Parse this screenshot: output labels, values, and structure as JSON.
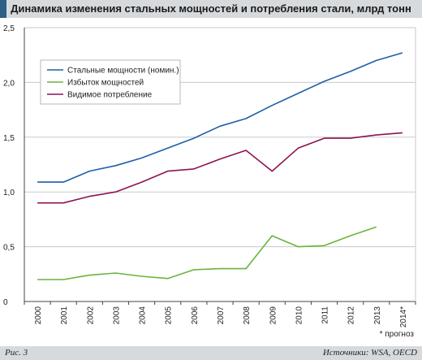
{
  "header": {
    "title": "Динамика изменения стальных мощностей и потребления стали, млрд тонн"
  },
  "footer": {
    "figure_label": "Рис. 3",
    "sources": "Источники: WSA, OECD"
  },
  "colors": {
    "title_bar": "#d7dadd",
    "title_accent": "#2e5f86",
    "grid": "#c8cacc"
  },
  "chart_data": {
    "type": "line",
    "title": "Динамика изменения стальных мощностей и потребления стали, млрд тонн",
    "xlabel": "",
    "ylabel": "",
    "categories": [
      "2000",
      "2001",
      "2002",
      "2003",
      "2004",
      "2005",
      "2006",
      "2007",
      "2008",
      "2009",
      "2010",
      "2011",
      "2012",
      "2013",
      "2014*"
    ],
    "yticks": [
      "0",
      "0,5",
      "1,0",
      "1,5",
      "2,0",
      "2,5"
    ],
    "ylim": [
      0,
      2.5
    ],
    "grid": true,
    "legend_position": "top-left",
    "note": "* прогноз",
    "series": [
      {
        "name": "Стальные мощности (номин.)",
        "color": "#1f5fa6",
        "values": [
          1.09,
          1.09,
          1.19,
          1.24,
          1.31,
          1.4,
          1.49,
          1.6,
          1.67,
          1.79,
          1.9,
          2.01,
          2.1,
          2.2,
          2.27
        ]
      },
      {
        "name": "Избыток мощностей",
        "color": "#6ab43c",
        "values": [
          0.2,
          0.2,
          0.24,
          0.26,
          0.23,
          0.21,
          0.29,
          0.3,
          0.3,
          0.6,
          0.5,
          0.51,
          0.6,
          0.68,
          null
        ]
      },
      {
        "name": "Видимое потребление",
        "color": "#8e1353",
        "values": [
          0.9,
          0.9,
          0.96,
          1.0,
          1.09,
          1.19,
          1.21,
          1.3,
          1.38,
          1.19,
          1.4,
          1.49,
          1.49,
          1.52,
          1.54
        ]
      }
    ]
  }
}
